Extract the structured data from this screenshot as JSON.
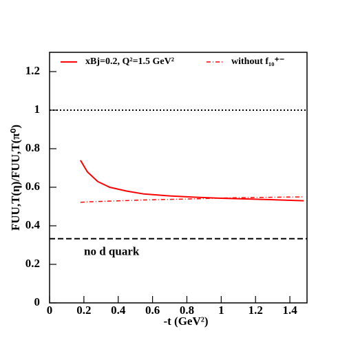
{
  "chart_data": {
    "type": "line",
    "xlabel": "-t (GeV²)",
    "ylabel": "FUU,T(η)/FUU,T(π⁰)",
    "x": [
      0.18,
      0.22,
      0.28,
      0.35,
      0.45,
      0.55,
      0.7,
      0.85,
      1.0,
      1.2,
      1.48
    ],
    "series": [
      {
        "name": "xBj=0.2, Q²=1.5 GeV²",
        "color": "#ff0000",
        "style": "solid",
        "values": [
          0.74,
          0.68,
          0.63,
          0.6,
          0.58,
          0.565,
          0.555,
          0.548,
          0.543,
          0.538,
          0.53
        ]
      },
      {
        "name": "without f₁₀⁺⁻",
        "color": "#ff0000",
        "style": "dashdot",
        "values": [
          0.522,
          0.524,
          0.526,
          0.528,
          0.531,
          0.534,
          0.537,
          0.54,
          0.544,
          0.547,
          0.55
        ]
      }
    ],
    "reference_lines": [
      {
        "value": 1,
        "style": "dotted"
      },
      {
        "value": 0.333,
        "style": "dashed",
        "label": "no d quark"
      }
    ],
    "xlim": [
      0,
      1.5
    ],
    "xticks": [
      0,
      0.2,
      0.4,
      0.6,
      0.8,
      1,
      1.2,
      1.4
    ],
    "ylim": [
      0,
      1.3
    ],
    "yticks": [
      0,
      0.2,
      0.4,
      0.6,
      0.8,
      1,
      1.2
    ]
  }
}
